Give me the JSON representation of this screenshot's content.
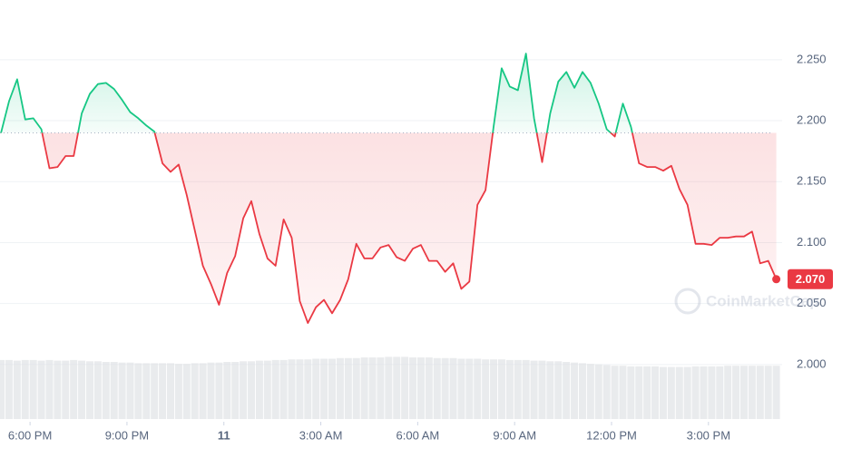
{
  "chart_data": {
    "type": "line",
    "x": [
      -0.9,
      -0.65,
      -0.4,
      -0.15,
      0.1,
      0.35,
      0.6,
      0.85,
      1.1,
      1.35,
      1.6,
      1.85,
      2.1,
      2.35,
      2.6,
      2.85,
      3.1,
      3.35,
      3.6,
      3.85,
      4.1,
      4.35,
      4.6,
      4.85,
      5.1,
      5.35,
      5.6,
      5.85,
      6.1,
      6.35,
      6.6,
      6.85,
      7.1,
      7.35,
      7.6,
      7.85,
      8.1,
      8.35,
      8.6,
      8.85,
      9.1,
      9.35,
      9.6,
      9.85,
      10.1,
      10.35,
      10.6,
      10.85,
      11.1,
      11.35,
      11.6,
      11.85,
      12.1,
      12.35,
      12.6,
      12.85,
      13.1,
      13.35,
      13.6,
      13.85,
      14.1,
      14.35,
      14.6,
      14.85,
      15.1,
      15.35,
      15.6,
      15.85,
      16.1,
      16.35,
      16.6,
      16.85,
      17.1,
      17.35,
      17.6,
      17.85,
      18.1,
      18.35,
      18.6,
      18.85,
      19.1,
      19.35,
      19.6,
      19.85,
      20.1,
      20.35,
      20.6,
      20.85,
      21.1,
      21.35,
      21.6,
      21.85,
      22.1,
      22.35,
      22.6,
      22.85,
      23.1
    ],
    "series": [
      {
        "values": [
          2.19,
          2.216,
          2.234,
          2.201,
          2.202,
          2.193,
          2.161,
          2.162,
          2.171,
          2.171,
          2.206,
          2.222,
          2.23,
          2.231,
          2.226,
          2.217,
          2.207,
          2.202,
          2.196,
          2.191,
          2.165,
          2.158,
          2.164,
          2.139,
          2.11,
          2.081,
          2.066,
          2.049,
          2.075,
          2.089,
          2.12,
          2.134,
          2.107,
          2.087,
          2.081,
          2.119,
          2.104,
          2.052,
          2.034,
          2.047,
          2.053,
          2.042,
          2.053,
          2.07,
          2.099,
          2.087,
          2.087,
          2.096,
          2.098,
          2.088,
          2.085,
          2.095,
          2.098,
          2.085,
          2.085,
          2.076,
          2.083,
          2.062,
          2.068,
          2.131,
          2.143,
          2.195,
          2.243,
          2.228,
          2.225,
          2.255,
          2.202,
          2.166,
          2.206,
          2.232,
          2.24,
          2.227,
          2.24,
          2.231,
          2.214,
          2.193,
          2.187,
          2.214,
          2.195,
          2.165,
          2.162,
          2.162,
          2.159,
          2.163,
          2.144,
          2.131,
          2.099,
          2.099,
          2.098,
          2.104,
          2.104,
          2.105,
          2.105,
          2.109,
          2.083,
          2.085,
          2.07
        ],
        "up_color": "#16c784",
        "down_color": "#ea3943"
      }
    ],
    "baseline": 2.19,
    "price_marker": {
      "value": 2.07,
      "label": "2.070"
    },
    "volume": {
      "values": [
        93,
        93,
        92,
        93,
        93,
        92,
        93,
        92,
        92,
        93,
        92,
        91,
        91,
        90,
        90,
        89,
        89,
        88,
        88,
        88,
        88,
        88,
        87,
        87,
        88,
        88,
        89,
        89,
        90,
        90,
        91,
        91,
        92,
        92,
        93,
        93,
        94,
        94,
        94,
        95,
        95,
        95,
        96,
        96,
        96,
        97,
        97,
        97,
        98,
        98,
        98,
        97,
        97,
        97,
        96,
        96,
        96,
        95,
        95,
        95,
        94,
        94,
        94,
        93,
        93,
        93,
        92,
        92,
        91,
        91,
        90,
        89,
        88,
        87,
        86,
        85,
        84,
        84,
        83,
        83,
        83,
        83,
        82,
        82,
        82,
        82,
        83,
        83,
        83,
        83,
        84,
        84,
        84,
        84,
        84,
        84,
        84
      ],
      "ylim": [
        0,
        100
      ],
      "color": "#dfe2e6"
    },
    "xlim": [
      -0.93,
      23.28
    ],
    "xticks": [
      {
        "value": 0,
        "label": "6:00 PM"
      },
      {
        "value": 3,
        "label": "9:00 PM"
      },
      {
        "value": 6,
        "label": "11"
      },
      {
        "value": 9,
        "label": "3:00 AM"
      },
      {
        "value": 12,
        "label": "6:00 AM"
      },
      {
        "value": 15,
        "label": "9:00 AM"
      },
      {
        "value": 18,
        "label": "12:00 PM"
      },
      {
        "value": 21,
        "label": "3:00 PM"
      }
    ],
    "ylim": [
      1.953,
      2.299
    ],
    "yticks": [
      {
        "value": 2.0,
        "label": "2.000"
      },
      {
        "value": 2.05,
        "label": "2.050"
      },
      {
        "value": 2.1,
        "label": "2.100"
      },
      {
        "value": 2.15,
        "label": "2.150"
      },
      {
        "value": 2.2,
        "label": "2.200"
      },
      {
        "value": 2.25,
        "label": "2.250"
      }
    ],
    "grid": true,
    "watermark": "CoinMarketCap"
  }
}
